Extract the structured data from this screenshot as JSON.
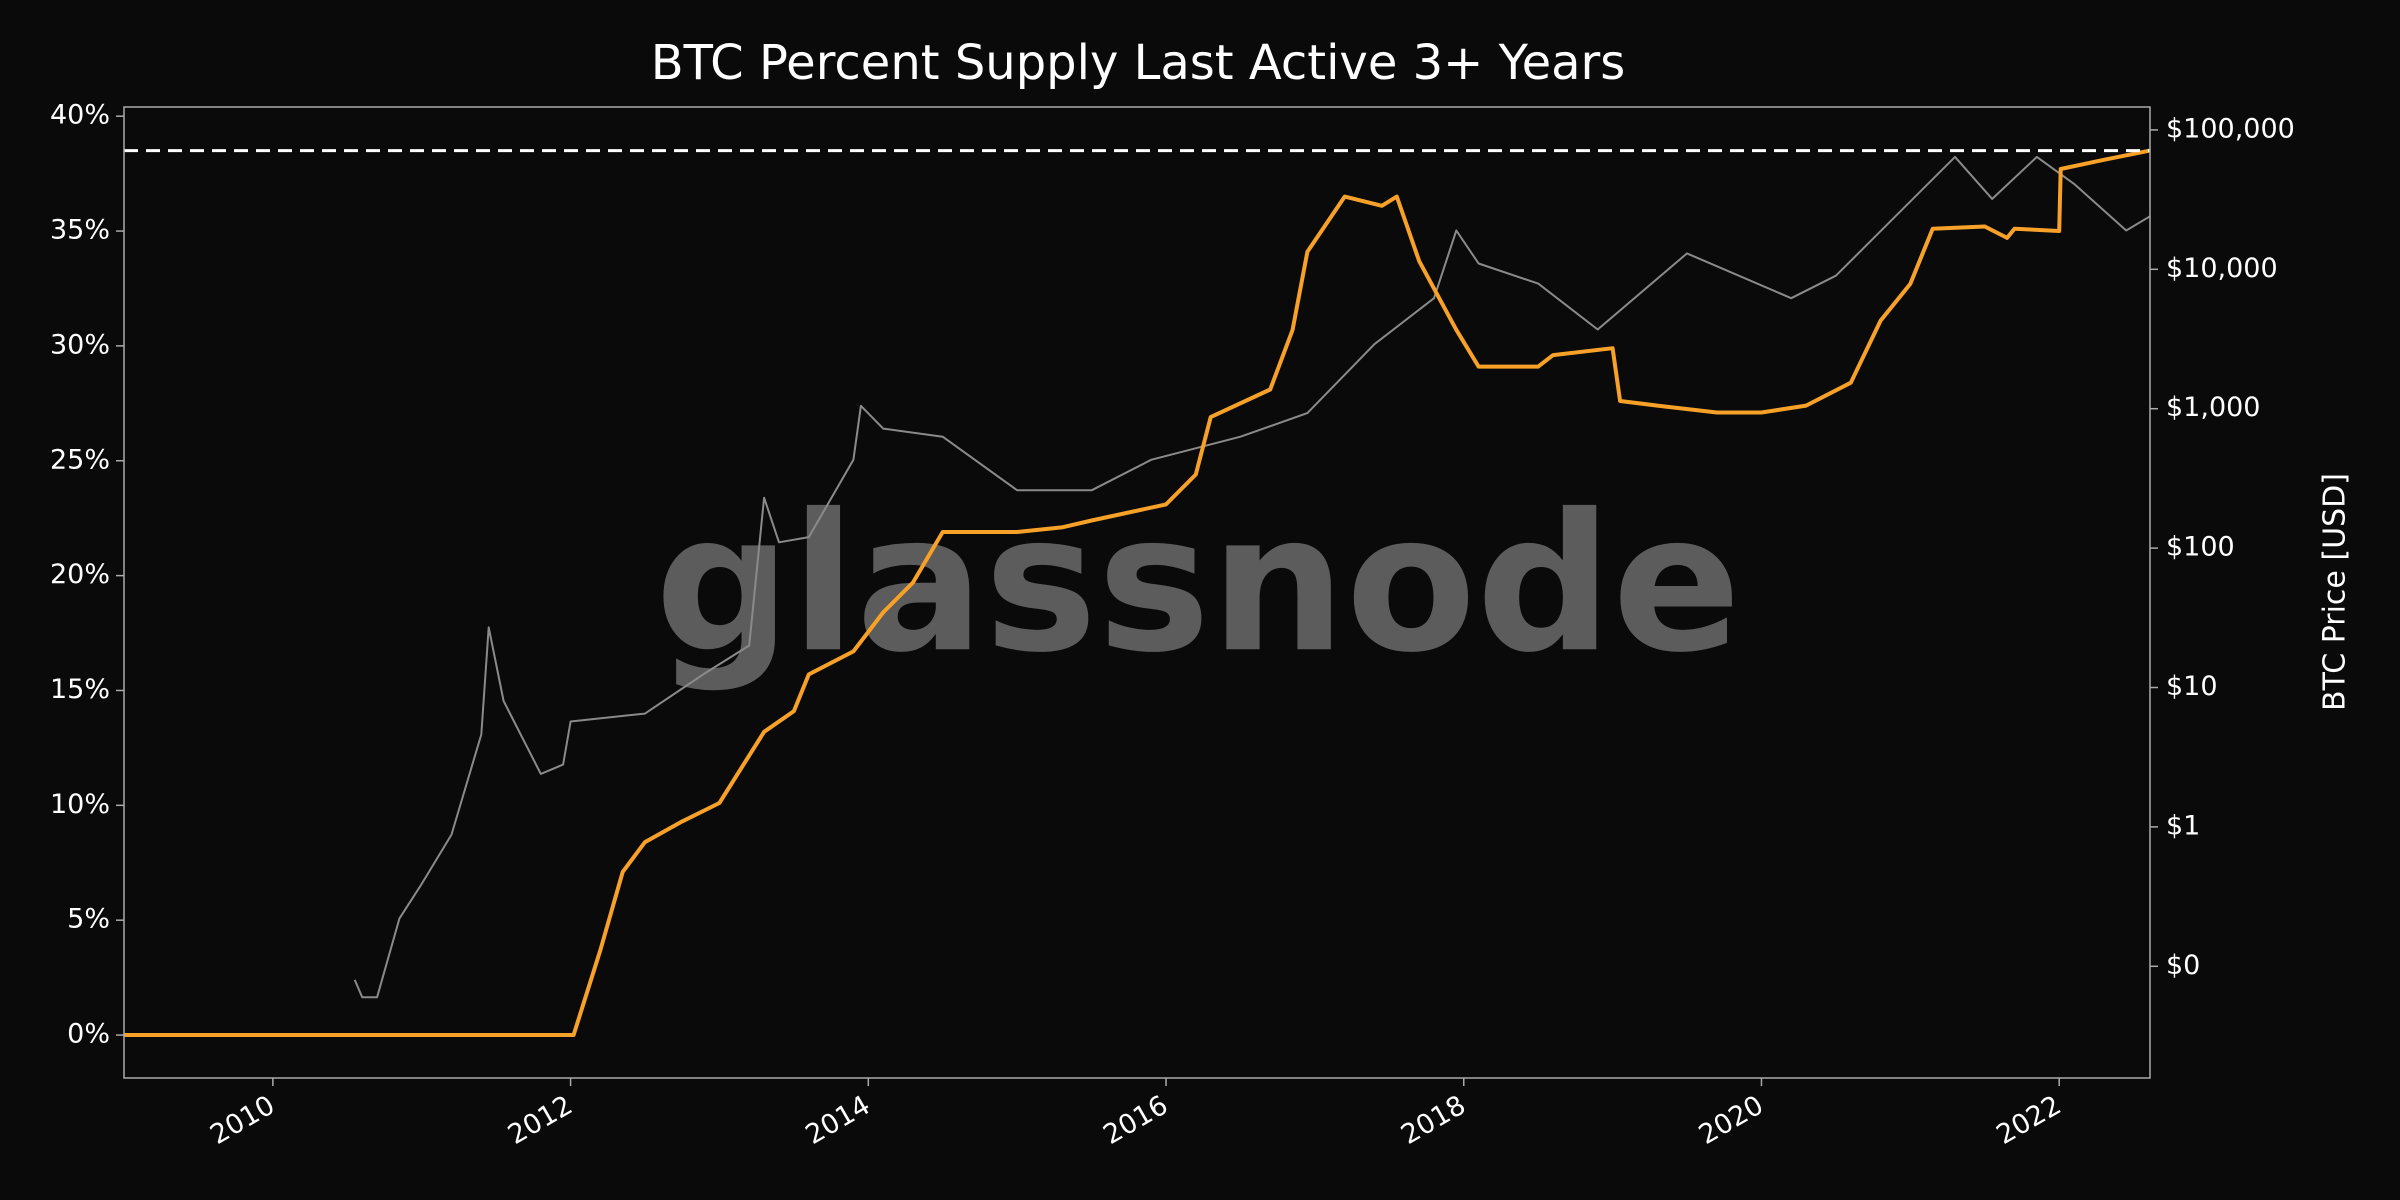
{
  "chart_data": {
    "type": "line",
    "title": "BTC Percent Supply Last Active 3+ Years",
    "y2label": "BTC Price [USD]",
    "watermark": "glassnode",
    "xlim": [
      2009.0,
      2022.61
    ],
    "xticks": [
      2010,
      2012,
      2014,
      2016,
      2018,
      2020,
      2022
    ],
    "ylim": [
      -1.87,
      40.4
    ],
    "yticks": [
      {
        "value": 0,
        "label": "0%"
      },
      {
        "value": 5,
        "label": "5%"
      },
      {
        "value": 10,
        "label": "10%"
      },
      {
        "value": 15,
        "label": "15%"
      },
      {
        "value": 20,
        "label": "20%"
      },
      {
        "value": 25,
        "label": "25%"
      },
      {
        "value": 30,
        "label": "30%"
      },
      {
        "value": 35,
        "label": "35%"
      },
      {
        "value": 40,
        "label": "40%"
      }
    ],
    "y2lim": [
      0.0158,
      146000
    ],
    "y2log": true,
    "y2ticks": [
      {
        "value": 0.1,
        "label": "$0"
      },
      {
        "value": 1,
        "label": "$1"
      },
      {
        "value": 10,
        "label": "$10"
      },
      {
        "value": 100,
        "label": "$100"
      },
      {
        "value": 1000,
        "label": "$1,000"
      },
      {
        "value": 10000,
        "label": "$10,000"
      },
      {
        "value": 100000,
        "label": "$100,000"
      }
    ],
    "hline": 38.5,
    "hline_color": "#ffffff",
    "series": [
      {
        "name": "Price",
        "color": "#8a8a8a",
        "axis": "y2",
        "x": [
          2010.55,
          2010.6,
          2010.7,
          2010.85,
          2011.0,
          2011.2,
          2011.4,
          2011.45,
          2011.55,
          2011.8,
          2011.95,
          2012.0,
          2012.5,
          2012.9,
          2013.2,
          2013.3,
          2013.4,
          2013.6,
          2013.9,
          2013.95,
          2014.1,
          2014.5,
          2015.0,
          2015.5,
          2015.9,
          2016.5,
          2016.95,
          2017.4,
          2017.8,
          2017.95,
          2018.1,
          2018.5,
          2018.9,
          2019.5,
          2020.2,
          2020.5,
          2020.9,
          2021.3,
          2021.55,
          2021.85,
          2022.1,
          2022.45,
          2022.61
        ],
        "values": [
          0.08,
          0.06,
          0.06,
          0.22,
          0.39,
          0.88,
          4.6,
          27,
          8,
          2.4,
          2.8,
          5.7,
          6.5,
          12.6,
          20,
          230,
          110,
          120,
          430,
          1050,
          720,
          630,
          260,
          260,
          430,
          630,
          930,
          2900,
          6200,
          19000,
          11000,
          7900,
          3700,
          13000,
          6200,
          9000,
          24000,
          64000,
          32000,
          64000,
          41000,
          19000,
          24000
        ]
      },
      {
        "name": "Percent Supply Last Active 3+ Years",
        "color": "#f7a128",
        "axis": "y",
        "x": [
          2009.0,
          2012.02,
          2012.2,
          2012.35,
          2012.5,
          2012.75,
          2013.0,
          2013.3,
          2013.5,
          2013.6,
          2013.9,
          2014.1,
          2014.3,
          2014.5,
          2015.0,
          2015.3,
          2015.5,
          2016.0,
          2016.2,
          2016.3,
          2016.7,
          2016.85,
          2016.95,
          2017.2,
          2017.45,
          2017.55,
          2017.7,
          2017.95,
          2018.1,
          2018.5,
          2018.6,
          2019.0,
          2019.05,
          2019.3,
          2019.7,
          2020.0,
          2020.3,
          2020.6,
          2020.8,
          2021.0,
          2021.15,
          2021.5,
          2021.65,
          2021.7,
          2022.0,
          2022.01,
          2022.3,
          2022.61
        ],
        "values": [
          0,
          0,
          3.7,
          7.1,
          8.4,
          9.3,
          10.1,
          13.2,
          14.1,
          15.7,
          16.7,
          18.4,
          19.7,
          21.9,
          21.9,
          22.1,
          22.4,
          23.1,
          24.4,
          26.9,
          28.1,
          30.7,
          34.1,
          36.5,
          36.1,
          36.5,
          33.7,
          30.7,
          29.1,
          29.1,
          29.6,
          29.9,
          27.6,
          27.4,
          27.1,
          27.1,
          27.4,
          28.4,
          31.1,
          32.7,
          35.1,
          35.2,
          34.7,
          35.1,
          35.0,
          37.7,
          38.1,
          38.5
        ]
      }
    ]
  }
}
